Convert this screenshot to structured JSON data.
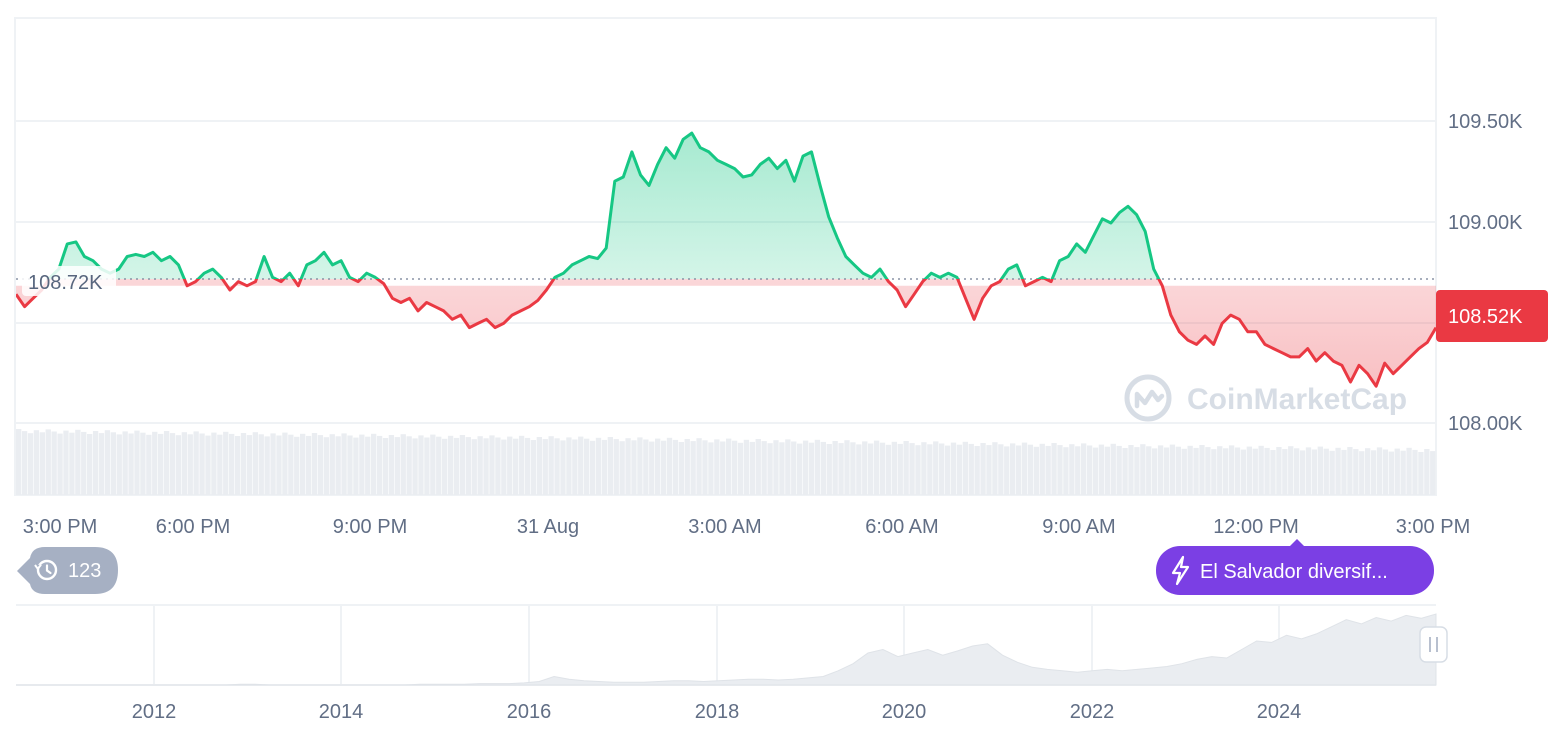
{
  "chart_data": {
    "type": "line",
    "y_ticks": [
      "108.00K",
      "109.00K",
      "109.50K"
    ],
    "ylim": [
      107.72,
      110.0
    ],
    "x_ticks": [
      "3:00 PM",
      "6:00 PM",
      "9:00 PM",
      "31 Aug",
      "3:00 AM",
      "6:00 AM",
      "9:00 AM",
      "12:00 PM",
      "3:00 PM"
    ],
    "reference_price": 108.72,
    "reference_label": "108.72K",
    "current_price": 108.52,
    "current_label": "108.52K",
    "series": [
      {
        "values": [
          108.68,
          108.62,
          108.66,
          108.7,
          108.76,
          108.8,
          108.92,
          108.93,
          108.86,
          108.84,
          108.8,
          108.78,
          108.8,
          108.86,
          108.87,
          108.86,
          108.88,
          108.84,
          108.86,
          108.82,
          108.72,
          108.74,
          108.78,
          108.8,
          108.76,
          108.7,
          108.74,
          108.72,
          108.74,
          108.86,
          108.76,
          108.74,
          108.78,
          108.72,
          108.82,
          108.84,
          108.88,
          108.82,
          108.84,
          108.76,
          108.74,
          108.78,
          108.76,
          108.73,
          108.66,
          108.64,
          108.66,
          108.6,
          108.64,
          108.62,
          108.6,
          108.56,
          108.58,
          108.52,
          108.54,
          108.56,
          108.52,
          108.54,
          108.58,
          108.6,
          108.62,
          108.65,
          108.7,
          108.76,
          108.78,
          108.82,
          108.84,
          108.86,
          108.85,
          108.9,
          109.22,
          109.24,
          109.36,
          109.25,
          109.2,
          109.3,
          109.38,
          109.33,
          109.42,
          109.45,
          109.38,
          109.36,
          109.32,
          109.3,
          109.28,
          109.24,
          109.25,
          109.3,
          109.33,
          109.28,
          109.32,
          109.22,
          109.34,
          109.36,
          109.2,
          109.05,
          108.95,
          108.86,
          108.82,
          108.78,
          108.76,
          108.8,
          108.74,
          108.7,
          108.62,
          108.68,
          108.74,
          108.78,
          108.76,
          108.78,
          108.76,
          108.66,
          108.56,
          108.66,
          108.72,
          108.74,
          108.8,
          108.82,
          108.72,
          108.74,
          108.76,
          108.74,
          108.84,
          108.86,
          108.92,
          108.88,
          108.96,
          109.04,
          109.02,
          109.07,
          109.1,
          109.06,
          108.98,
          108.8,
          108.72,
          108.58,
          108.5,
          108.46,
          108.44,
          108.48,
          108.44,
          108.54,
          108.58,
          108.56,
          108.5,
          108.5,
          108.44,
          108.42,
          108.4,
          108.38,
          108.38,
          108.42,
          108.36,
          108.4,
          108.36,
          108.34,
          108.26,
          108.34,
          108.3,
          108.24,
          108.35,
          108.3,
          108.34,
          108.38,
          108.42,
          108.45,
          108.52
        ]
      }
    ],
    "colors": {
      "up": "#16c784",
      "down": "#ea3943",
      "grid": "#eff2f5",
      "volume": "#eaedf1",
      "event": "#7b3fe4",
      "history_badge": "#a6b0c3"
    },
    "navigator": {
      "x_ticks": [
        "2012",
        "2014",
        "2016",
        "2018",
        "2020",
        "2022",
        "2024"
      ],
      "values": [
        0.0,
        0.0,
        0.0,
        0.0,
        0.0,
        0.0,
        0.0,
        0.0,
        0.0,
        0.0,
        0.0,
        0.0,
        0.0,
        0.0,
        0.0,
        0.01,
        0.01,
        0.0,
        0.0,
        0.0,
        0.0,
        0.0,
        0.0,
        0.0,
        0.0,
        0.0,
        0.0,
        0.01,
        0.01,
        0.01,
        0.01,
        0.02,
        0.02,
        0.02,
        0.03,
        0.05,
        0.12,
        0.08,
        0.06,
        0.05,
        0.04,
        0.04,
        0.04,
        0.05,
        0.06,
        0.06,
        0.05,
        0.06,
        0.07,
        0.08,
        0.08,
        0.07,
        0.08,
        0.1,
        0.12,
        0.2,
        0.3,
        0.45,
        0.5,
        0.4,
        0.45,
        0.5,
        0.42,
        0.48,
        0.55,
        0.58,
        0.42,
        0.32,
        0.25,
        0.22,
        0.2,
        0.18,
        0.2,
        0.22,
        0.2,
        0.22,
        0.24,
        0.26,
        0.3,
        0.36,
        0.4,
        0.38,
        0.5,
        0.62,
        0.6,
        0.7,
        0.65,
        0.72,
        0.82,
        0.92,
        0.86,
        0.95,
        0.9,
        0.98,
        0.94,
        1.0
      ]
    },
    "history_badge_count": "123",
    "event_badge_label": "El Salvador diversif...",
    "watermark": "CoinMarketCap"
  }
}
